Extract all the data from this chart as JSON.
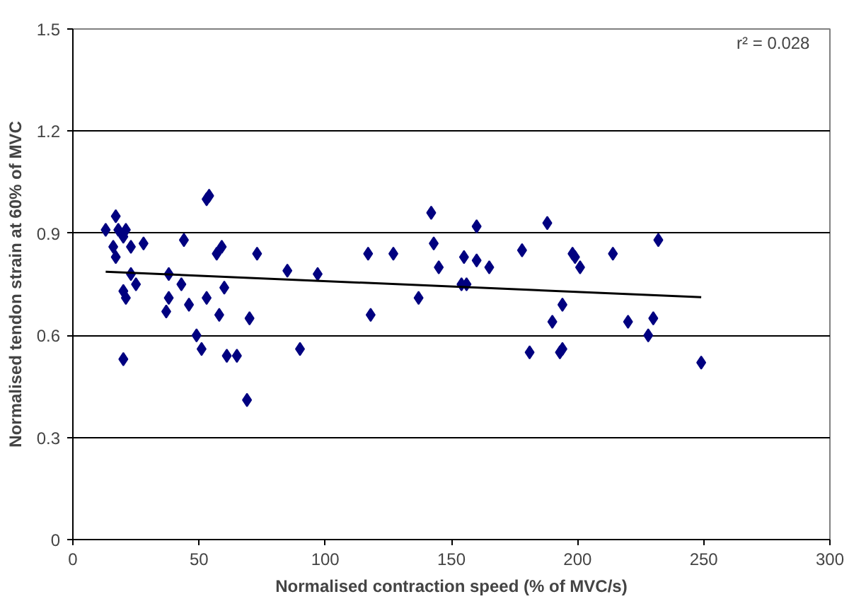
{
  "chart_data": {
    "type": "scatter",
    "xlabel": "Normalised contraction speed (% of MVC/s)",
    "ylabel": "Normalised tendon strain at 60% of MVC",
    "xlim": [
      0,
      300
    ],
    "ylim": [
      0,
      1.5
    ],
    "xticks": [
      0,
      50,
      100,
      150,
      200,
      250,
      300
    ],
    "yticks": [
      0,
      {
        "value": 0.3,
        "label": "0.3"
      },
      {
        "value": 0.6,
        "label": "0.6"
      },
      {
        "value": 0.9,
        "label": "0.9"
      },
      {
        "value": 1.2,
        "label": "1.2"
      },
      1.5
    ],
    "grid": "y",
    "annotations": [
      "r² = 0.028"
    ],
    "series": [
      {
        "marker": "diamond",
        "color": "#000080",
        "x": [
          53,
          54,
          17,
          13,
          18,
          21,
          20,
          16,
          17,
          23,
          28,
          44,
          59,
          57,
          73,
          85,
          97,
          23,
          38,
          20,
          21,
          25,
          43,
          38,
          46,
          53,
          60,
          37,
          58,
          70,
          49,
          51,
          61,
          65,
          90,
          20,
          69,
          142,
          117,
          127,
          143,
          145,
          160,
          155,
          160,
          165,
          178,
          188,
          198,
          199,
          201,
          137,
          154,
          156,
          118,
          194,
          190,
          181,
          193,
          194,
          214,
          232,
          220,
          230,
          228,
          249
        ],
        "values": [
          1.0,
          1.01,
          0.95,
          0.91,
          0.91,
          0.91,
          0.89,
          0.86,
          0.83,
          0.86,
          0.87,
          0.88,
          0.86,
          0.84,
          0.84,
          0.79,
          0.78,
          0.78,
          0.78,
          0.73,
          0.71,
          0.75,
          0.75,
          0.71,
          0.69,
          0.71,
          0.74,
          0.67,
          0.66,
          0.65,
          0.6,
          0.56,
          0.54,
          0.54,
          0.56,
          0.53,
          0.41,
          0.96,
          0.84,
          0.84,
          0.87,
          0.8,
          0.92,
          0.83,
          0.82,
          0.8,
          0.85,
          0.93,
          0.84,
          0.83,
          0.8,
          0.71,
          0.75,
          0.75,
          0.66,
          0.69,
          0.64,
          0.55,
          0.55,
          0.56,
          0.84,
          0.88,
          0.64,
          0.65,
          0.6,
          0.52
        ]
      },
      {
        "type": "line",
        "color": "#000000",
        "x": [
          13,
          249
        ],
        "values": [
          0.787,
          0.712
        ]
      }
    ]
  }
}
